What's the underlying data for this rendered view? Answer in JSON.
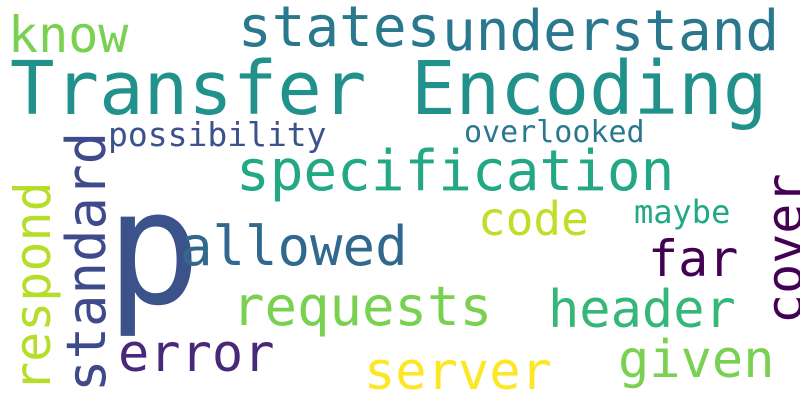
{
  "words": {
    "transfer_encoding": {
      "text": "Transfer Encoding",
      "color": "#21918c"
    },
    "p": {
      "text": "p",
      "color": "#3b528b"
    },
    "understand": {
      "text": "understand",
      "color": "#2a788e"
    },
    "states": {
      "text": "states",
      "color": "#2a788e"
    },
    "know": {
      "text": "know",
      "color": "#7ad151"
    },
    "specification": {
      "text": "specification",
      "color": "#22a884"
    },
    "possibility": {
      "text": "possibility",
      "color": "#3b528b"
    },
    "overlooked": {
      "text": "overlooked",
      "color": "#2a788e"
    },
    "allowed": {
      "text": "allowed",
      "color": "#31688e"
    },
    "code": {
      "text": "code",
      "color": "#bddf26"
    },
    "maybe": {
      "text": "maybe",
      "color": "#22a884"
    },
    "far": {
      "text": "far",
      "color": "#440154"
    },
    "cover": {
      "text": "cover",
      "color": "#440154"
    },
    "requests": {
      "text": "requests",
      "color": "#7ad151"
    },
    "header": {
      "text": "header",
      "color": "#35b779"
    },
    "error": {
      "text": "error",
      "color": "#482878"
    },
    "given": {
      "text": "given",
      "color": "#7ad151"
    },
    "server": {
      "text": "server",
      "color": "#fde725"
    },
    "respond": {
      "text": "respond",
      "color": "#b5de2b"
    },
    "standard": {
      "text": "standard",
      "color": "#3e4a89"
    }
  }
}
